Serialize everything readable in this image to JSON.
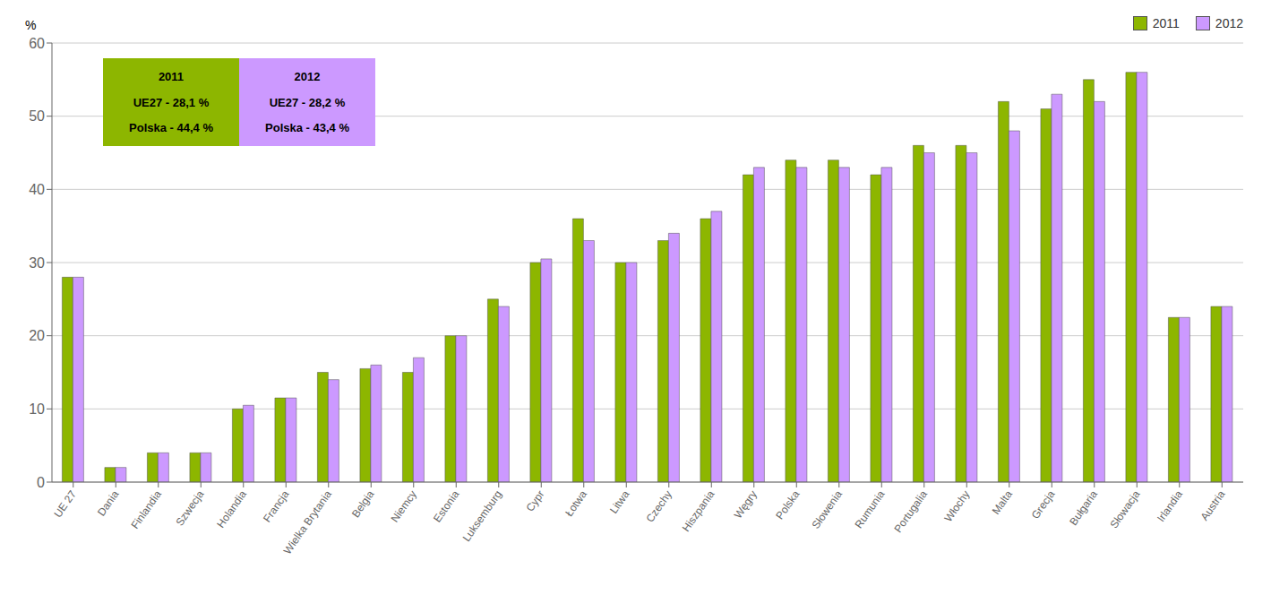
{
  "chart_data": {
    "type": "bar",
    "ylabel": "%",
    "categories": [
      "UE 27",
      "Dania",
      "Finlandia",
      "Szwecja",
      "Holandia",
      "Francja",
      "Wielka Brytania",
      "Belgia",
      "Niemcy",
      "Estonia",
      "Luksemburg",
      "Cypr",
      "Łotwa",
      "Litwa",
      "Czechy",
      "Hiszpania",
      "Węgry",
      "Polska",
      "Słowenia",
      "Rumunia",
      "Portugalia",
      "Włochy",
      "Malta",
      "Grecja",
      "Bułgaria",
      "Słowacja",
      "Irlandia",
      "Austria"
    ],
    "series": [
      {
        "name": "2011",
        "color": "#8DB600",
        "values": [
          28.0,
          2.0,
          4.0,
          4.0,
          10.0,
          11.5,
          15.0,
          15.5,
          15.0,
          20.0,
          25.0,
          30.0,
          36.0,
          30.0,
          33.0,
          36.0,
          42.0,
          44.0,
          44.0,
          42.0,
          46.0,
          46.0,
          52.0,
          51.0,
          55.0,
          56.0,
          22.5,
          24.0
        ]
      },
      {
        "name": "2012",
        "color": "#CC99FF",
        "values": [
          28.0,
          2.0,
          4.0,
          4.0,
          10.5,
          11.5,
          14.0,
          16.0,
          17.0,
          20.0,
          24.0,
          30.5,
          33.0,
          30.0,
          34.0,
          37.0,
          43.0,
          43.0,
          43.0,
          43.0,
          45.0,
          45.0,
          48.0,
          53.0,
          52.0,
          56.0,
          22.5,
          24.0
        ]
      }
    ],
    "ylim": [
      0,
      60
    ],
    "yticks": [
      0,
      10,
      20,
      30,
      40,
      50,
      60
    ],
    "grid": true,
    "legend": "upper right",
    "annotations": [
      [
        "2011",
        "UE27 - 28,1 %",
        "Polska - 44,4 %"
      ],
      [
        "2012",
        "UE27 - 28,2 %",
        "Polska - 43,4 %"
      ]
    ]
  }
}
